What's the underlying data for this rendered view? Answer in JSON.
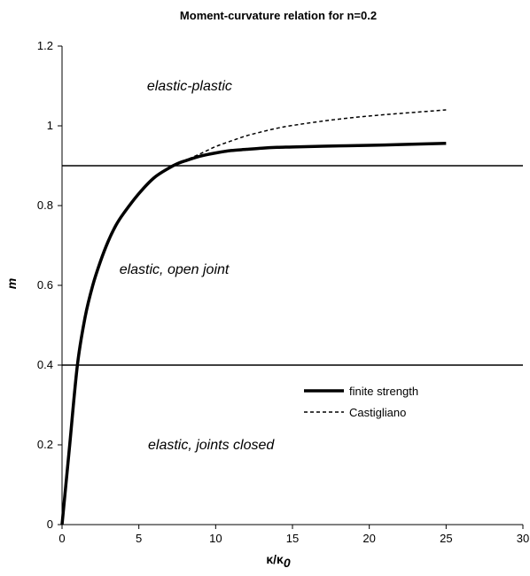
{
  "chart_data": {
    "type": "line",
    "title": "Moment-curvature relation for n=0.2",
    "xlabel": "κ/κ",
    "xlabel_subscript": "0",
    "ylabel": "m",
    "xlim": [
      0,
      30
    ],
    "ylim": [
      0,
      1.2
    ],
    "x_ticks": [
      "0",
      "5",
      "10",
      "15",
      "20",
      "25",
      "30"
    ],
    "y_ticks": [
      "0",
      "0.2",
      "0.4",
      "0.6",
      "0.8",
      "1",
      "1.2"
    ],
    "grid": false,
    "legend_position": "bottom-right",
    "series": [
      {
        "name": "finite strength",
        "style": "solid",
        "color": "#000000",
        "x": [
          0,
          0.25,
          0.5,
          1,
          1.5,
          2,
          2.5,
          3,
          3.5,
          4,
          5,
          6,
          7,
          7.5,
          8,
          9,
          10,
          11,
          12,
          13,
          14,
          15,
          17,
          20,
          22,
          25
        ],
        "y": [
          0,
          0.1,
          0.2,
          0.4,
          0.52,
          0.6,
          0.66,
          0.71,
          0.75,
          0.78,
          0.83,
          0.87,
          0.895,
          0.905,
          0.912,
          0.924,
          0.932,
          0.938,
          0.941,
          0.944,
          0.946,
          0.947,
          0.949,
          0.951,
          0.953,
          0.956
        ]
      },
      {
        "name": "Castigliano",
        "style": "dashed",
        "color": "#000000",
        "x": [
          7.5,
          8,
          9,
          10,
          11,
          12,
          13,
          14,
          15,
          17,
          19,
          21,
          23,
          25
        ],
        "y": [
          0.905,
          0.913,
          0.93,
          0.948,
          0.962,
          0.975,
          0.985,
          0.994,
          1.001,
          1.012,
          1.021,
          1.028,
          1.034,
          1.04
        ]
      }
    ],
    "horizontal_lines": [
      0.9,
      0.4
    ],
    "annotations": [
      {
        "text": "elastic-plastic",
        "x": 8.3,
        "y": 1.1
      },
      {
        "text": "elastic, open joint",
        "x": 7.3,
        "y": 0.64
      },
      {
        "text": "elastic, joints closed",
        "x": 9.7,
        "y": 0.2
      }
    ]
  }
}
